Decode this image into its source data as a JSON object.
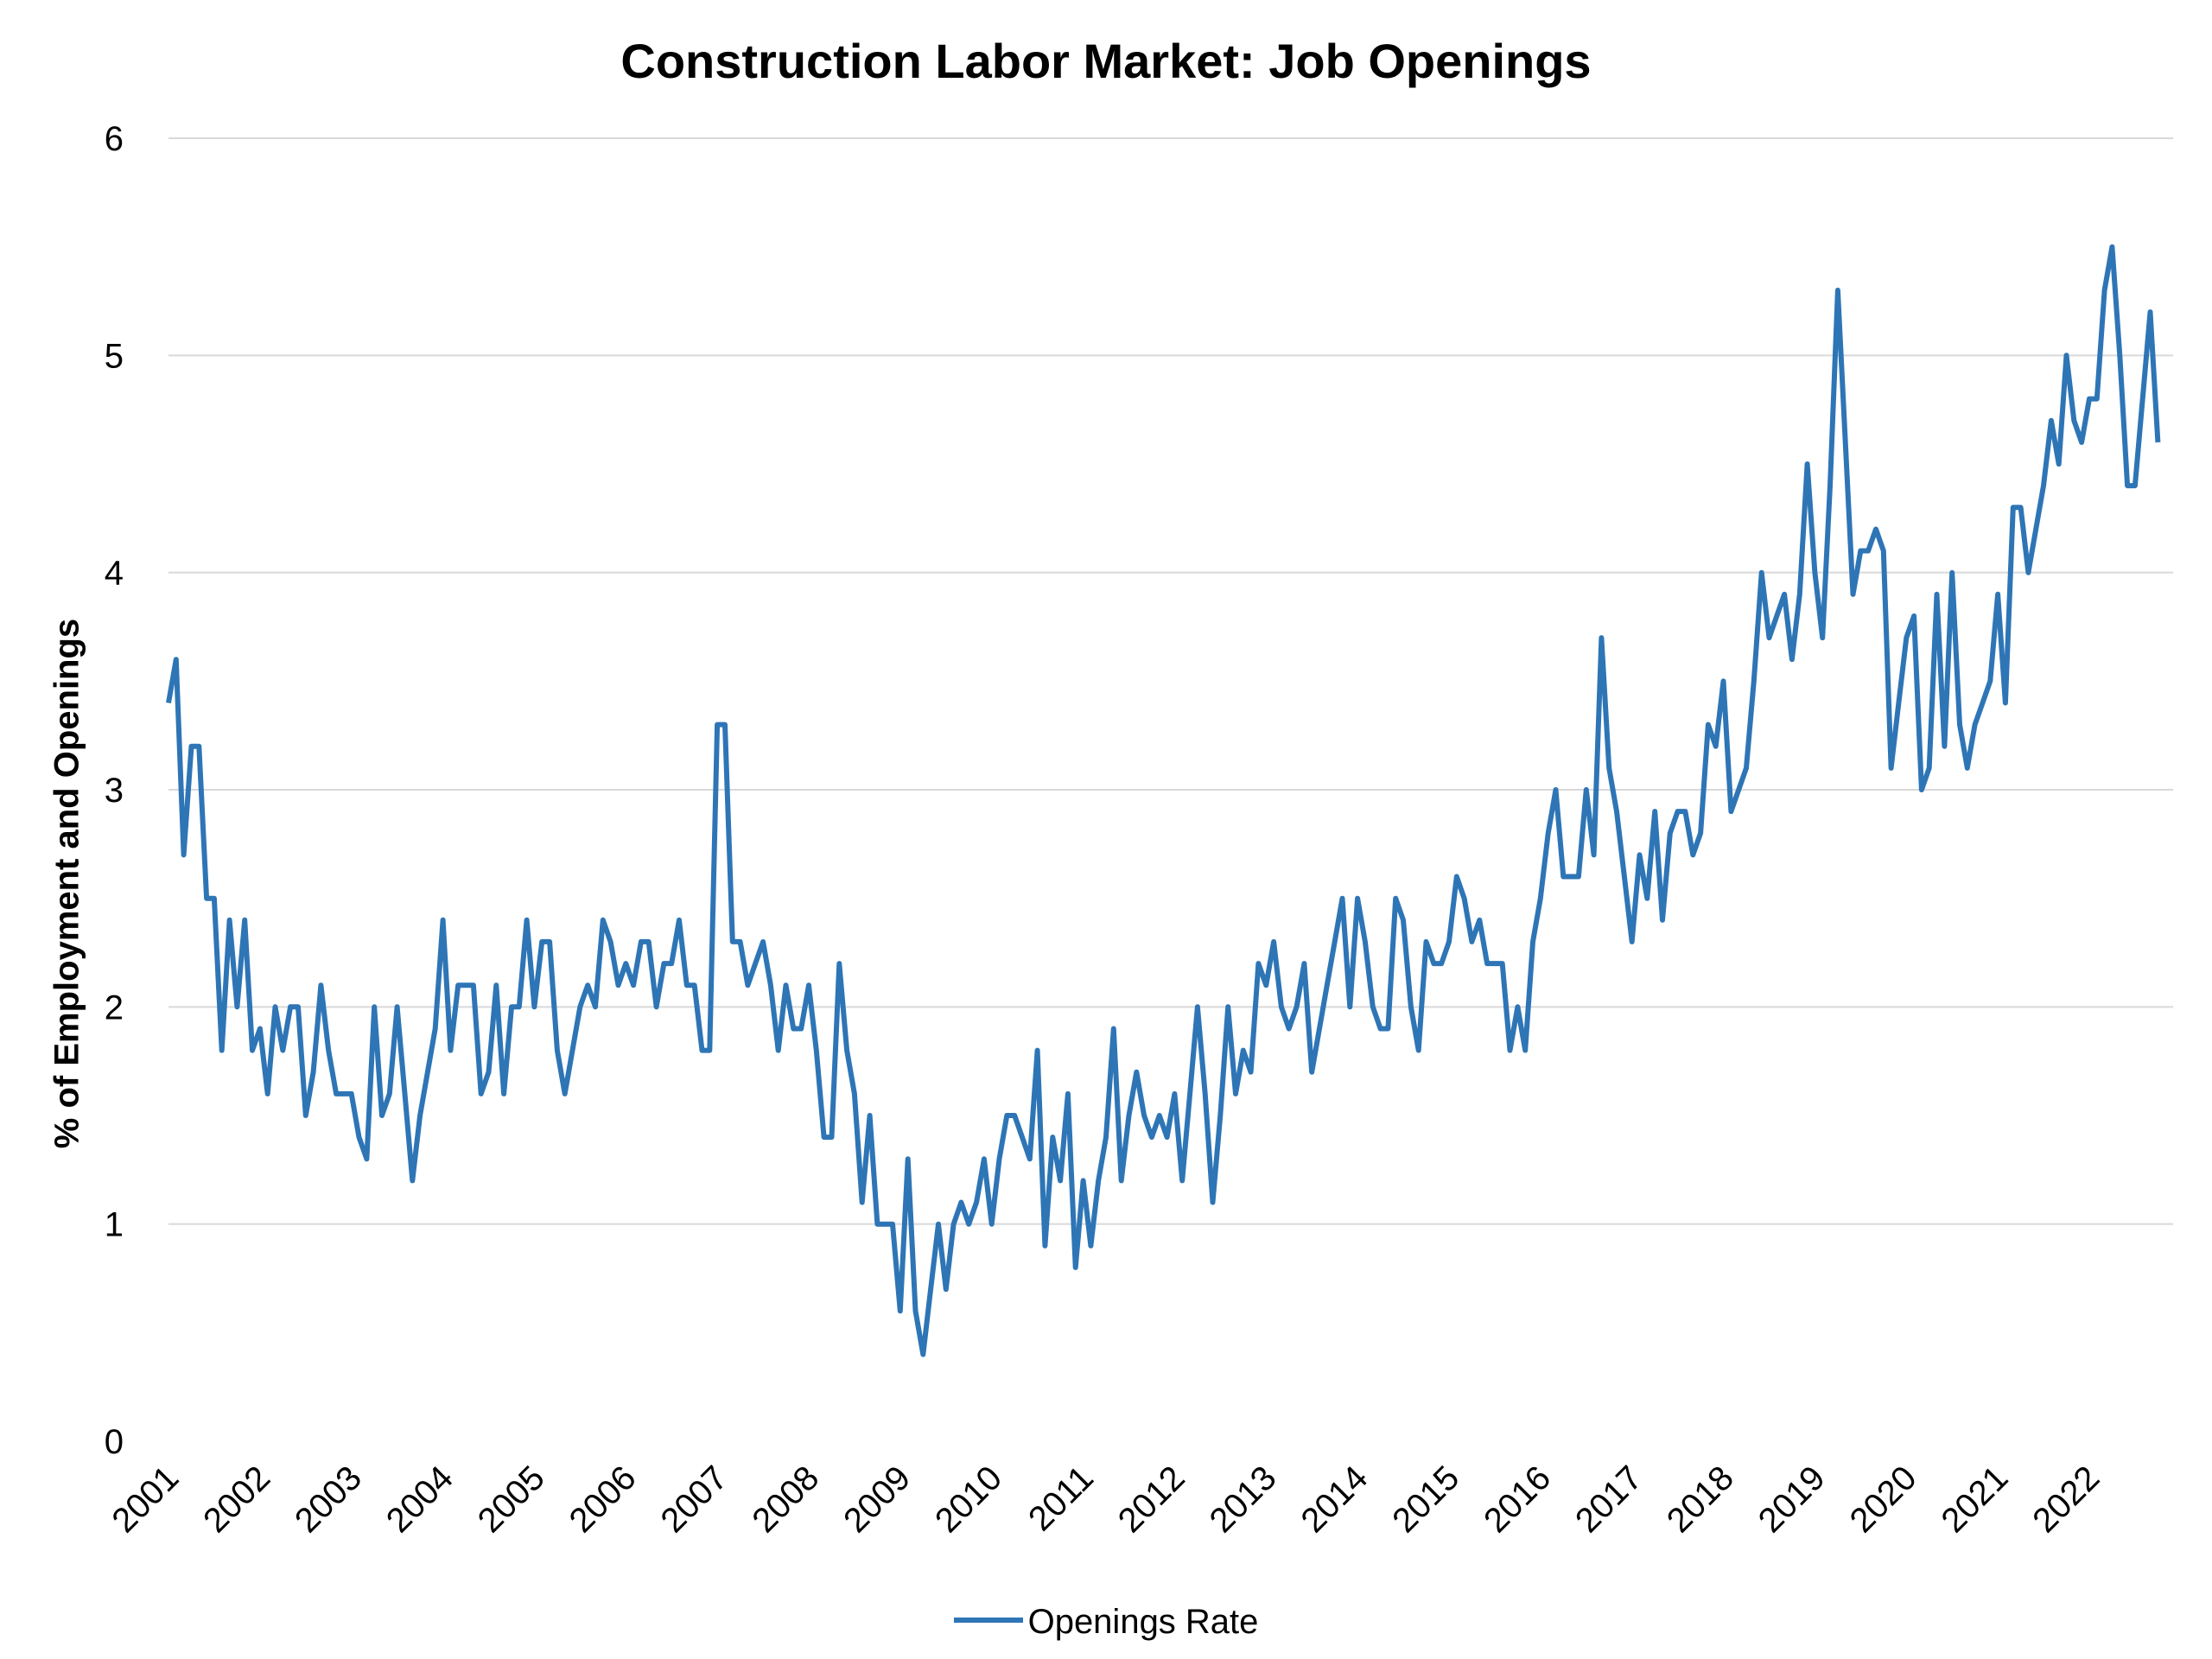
{
  "chart_data": {
    "type": "line",
    "title": "Construction Labor Market: Job Openings",
    "ylabel": "% of Employment and Openings",
    "xlabel": "",
    "ylim": [
      0,
      6
    ],
    "yticks": [
      "0",
      "1",
      "2",
      "3",
      "4",
      "5",
      "6"
    ],
    "xticks": [
      "2001",
      "2002",
      "2003",
      "2004",
      "2005",
      "2006",
      "2007",
      "2008",
      "2009",
      "2010",
      "2011",
      "2012",
      "2013",
      "2014",
      "2015",
      "2016",
      "2017",
      "2018",
      "2019",
      "2020",
      "2021",
      "2022"
    ],
    "x_start": "2001-01",
    "frequency": "monthly",
    "grid": true,
    "legend_position": "bottom",
    "series": [
      {
        "name": "Openings Rate",
        "color": "#2e75b6",
        "values": [
          3.4,
          3.6,
          2.7,
          3.2,
          3.2,
          2.5,
          2.5,
          1.8,
          2.4,
          2.0,
          2.4,
          1.8,
          1.9,
          1.6,
          2.0,
          1.8,
          2.0,
          2.0,
          1.5,
          1.7,
          2.1,
          1.8,
          1.6,
          1.6,
          1.6,
          1.4,
          1.3,
          2.0,
          1.5,
          1.6,
          2.0,
          1.6,
          1.2,
          1.5,
          1.7,
          1.9,
          2.4,
          1.8,
          2.1,
          2.1,
          2.1,
          1.6,
          1.7,
          2.1,
          1.6,
          2.0,
          2.0,
          2.4,
          2.0,
          2.3,
          2.3,
          1.8,
          1.6,
          1.8,
          2.0,
          2.1,
          2.0,
          2.4,
          2.3,
          2.1,
          2.2,
          2.1,
          2.3,
          2.3,
          2.0,
          2.2,
          2.2,
          2.4,
          2.1,
          2.1,
          1.8,
          1.8,
          3.3,
          3.3,
          2.3,
          2.3,
          2.1,
          2.2,
          2.3,
          2.1,
          1.8,
          2.1,
          1.9,
          1.9,
          2.1,
          1.8,
          1.4,
          1.4,
          2.2,
          1.8,
          1.6,
          1.1,
          1.5,
          1.0,
          1.0,
          1.0,
          0.6,
          1.3,
          0.6,
          0.4,
          0.7,
          1.0,
          0.7,
          1.0,
          1.1,
          1.0,
          1.1,
          1.3,
          1.0,
          1.3,
          1.5,
          1.5,
          1.4,
          1.3,
          1.8,
          0.9,
          1.4,
          1.2,
          1.6,
          0.8,
          1.2,
          0.9,
          1.2,
          1.4,
          1.9,
          1.2,
          1.5,
          1.7,
          1.5,
          1.4,
          1.5,
          1.4,
          1.6,
          1.2,
          1.6,
          2.0,
          1.6,
          1.1,
          1.5,
          2.0,
          1.6,
          1.8,
          1.7,
          2.2,
          2.1,
          2.3,
          2.0,
          1.9,
          2.0,
          2.2,
          1.7,
          1.9,
          2.1,
          2.3,
          2.5,
          2.0,
          2.5,
          2.3,
          2.0,
          1.9,
          1.9,
          2.5,
          2.4,
          2.0,
          1.8,
          2.3,
          2.2,
          2.2,
          2.3,
          2.6,
          2.5,
          2.3,
          2.4,
          2.2,
          2.2,
          2.2,
          1.8,
          2.0,
          1.8,
          2.3,
          2.5,
          2.8,
          3.0,
          2.6,
          2.6,
          2.6,
          3.0,
          2.7,
          3.7,
          3.1,
          2.9,
          2.6,
          2.3,
          2.7,
          2.5,
          2.9,
          2.4,
          2.8,
          2.9,
          2.9,
          2.7,
          2.8,
          3.3,
          3.2,
          3.5,
          2.9,
          3.0,
          3.1,
          3.5,
          4.0,
          3.7,
          3.8,
          3.9,
          3.6,
          3.9,
          4.5,
          4.0,
          3.7,
          4.4,
          5.3,
          4.6,
          3.9,
          4.1,
          4.1,
          4.2,
          4.1,
          3.1,
          3.4,
          3.7,
          3.8,
          3.0,
          3.1,
          3.9,
          3.2,
          4.0,
          3.3,
          3.1,
          3.3,
          3.4,
          3.5,
          3.9,
          3.4,
          4.3,
          4.3,
          4.0,
          4.2,
          4.4,
          4.7,
          4.5,
          5.0,
          4.7,
          4.6,
          4.8,
          4.8,
          5.3,
          5.5,
          5.0,
          4.4,
          4.4,
          4.8,
          5.2,
          4.6
        ]
      }
    ]
  }
}
